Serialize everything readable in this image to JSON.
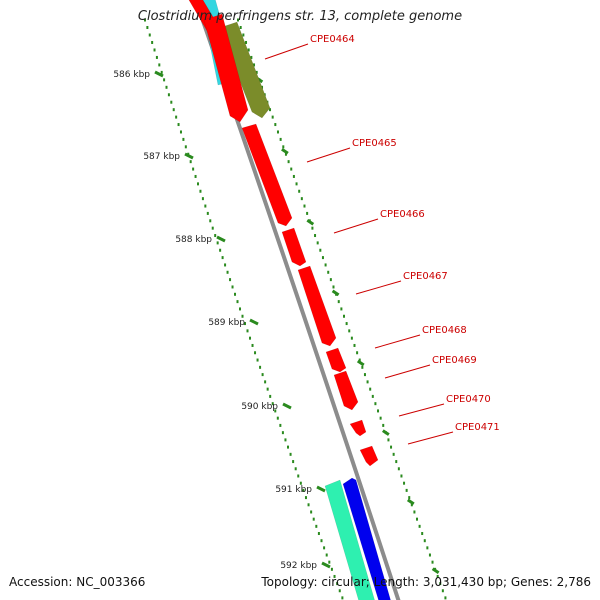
{
  "title": "Clostridium perfringens str. 13, complete genome",
  "footer": {
    "accession": "Accession: NC_003366",
    "stats": "Topology: circular; Length: 3,031,430 bp; Genes: 2,786"
  },
  "colors": {
    "backbone": "#8c8c8c",
    "gene_red": "#ff0000",
    "gene_olive": "#7b8c2a",
    "gene_cyan": "#33d6e0",
    "gene_aqua": "#2ef0b0",
    "gene_blue": "#0000ee",
    "tick": "#2a8a1e",
    "label": "#cc0000"
  },
  "scale": {
    "ticks": [
      {
        "kbp": 586,
        "label": "586 kbp"
      },
      {
        "kbp": 587,
        "label": "587 kbp"
      },
      {
        "kbp": 588,
        "label": "588 kbp"
      },
      {
        "kbp": 589,
        "label": "589 kbp"
      },
      {
        "kbp": 590,
        "label": "590 kbp"
      },
      {
        "kbp": 591,
        "label": "591 kbp"
      },
      {
        "kbp": 592,
        "label": "592 kbp"
      }
    ]
  },
  "genes": [
    {
      "id": "CPE0464",
      "label": "CPE0464"
    },
    {
      "id": "CPE0465",
      "label": "CPE0465"
    },
    {
      "id": "CPE0466",
      "label": "CPE0466"
    },
    {
      "id": "CPE0467",
      "label": "CPE0467"
    },
    {
      "id": "CPE0468",
      "label": "CPE0468"
    },
    {
      "id": "CPE0469",
      "label": "CPE0469"
    },
    {
      "id": "CPE0470",
      "label": "CPE0470"
    },
    {
      "id": "CPE0471",
      "label": "CPE0471"
    }
  ]
}
